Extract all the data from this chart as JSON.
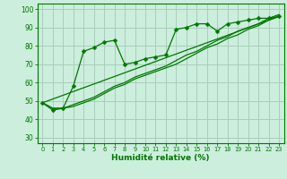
{
  "background_color": "#cceedd",
  "grid_color": "#aaccbb",
  "line_color": "#007700",
  "marker_color": "#007700",
  "xlabel": "Humidité relative (%)",
  "xlabel_color": "#007700",
  "xlim": [
    -0.5,
    23.5
  ],
  "ylim": [
    27,
    103
  ],
  "yticks": [
    30,
    40,
    50,
    60,
    70,
    80,
    90,
    100
  ],
  "xticks": [
    0,
    1,
    2,
    3,
    4,
    5,
    6,
    7,
    8,
    9,
    10,
    11,
    12,
    13,
    14,
    15,
    16,
    17,
    18,
    19,
    20,
    21,
    22,
    23
  ],
  "series1_x": [
    0,
    1,
    2,
    3,
    4,
    5,
    6,
    7,
    8,
    9,
    10,
    11,
    12,
    13,
    14,
    15,
    16,
    17,
    18,
    19,
    20,
    21,
    22,
    23
  ],
  "series1_y": [
    49,
    45,
    46,
    58,
    77,
    79,
    82,
    83,
    70,
    71,
    73,
    74,
    75,
    89,
    90,
    92,
    92,
    88,
    92,
    93,
    94,
    95,
    95,
    96
  ],
  "series2_x": [
    0,
    1,
    2,
    3,
    4,
    5,
    6,
    7,
    8,
    9,
    10,
    11,
    12,
    13,
    14,
    15,
    16,
    17,
    18,
    19,
    20,
    21,
    22,
    23
  ],
  "series2_y": [
    49,
    46,
    46,
    47,
    49,
    51,
    54,
    57,
    59,
    62,
    64,
    66,
    68,
    70,
    73,
    76,
    79,
    81,
    84,
    86,
    89,
    91,
    94,
    96
  ],
  "series3_x": [
    0,
    1,
    2,
    3,
    4,
    5,
    6,
    7,
    8,
    9,
    10,
    11,
    12,
    13,
    14,
    15,
    16,
    17,
    18,
    19,
    20,
    21,
    22,
    23
  ],
  "series3_y": [
    49,
    46,
    46,
    48,
    50,
    52,
    55,
    58,
    60,
    63,
    65,
    67,
    69,
    72,
    75,
    77,
    80,
    83,
    85,
    88,
    90,
    92,
    95,
    97
  ],
  "series4_x": [
    0,
    23
  ],
  "series4_y": [
    49,
    96
  ]
}
